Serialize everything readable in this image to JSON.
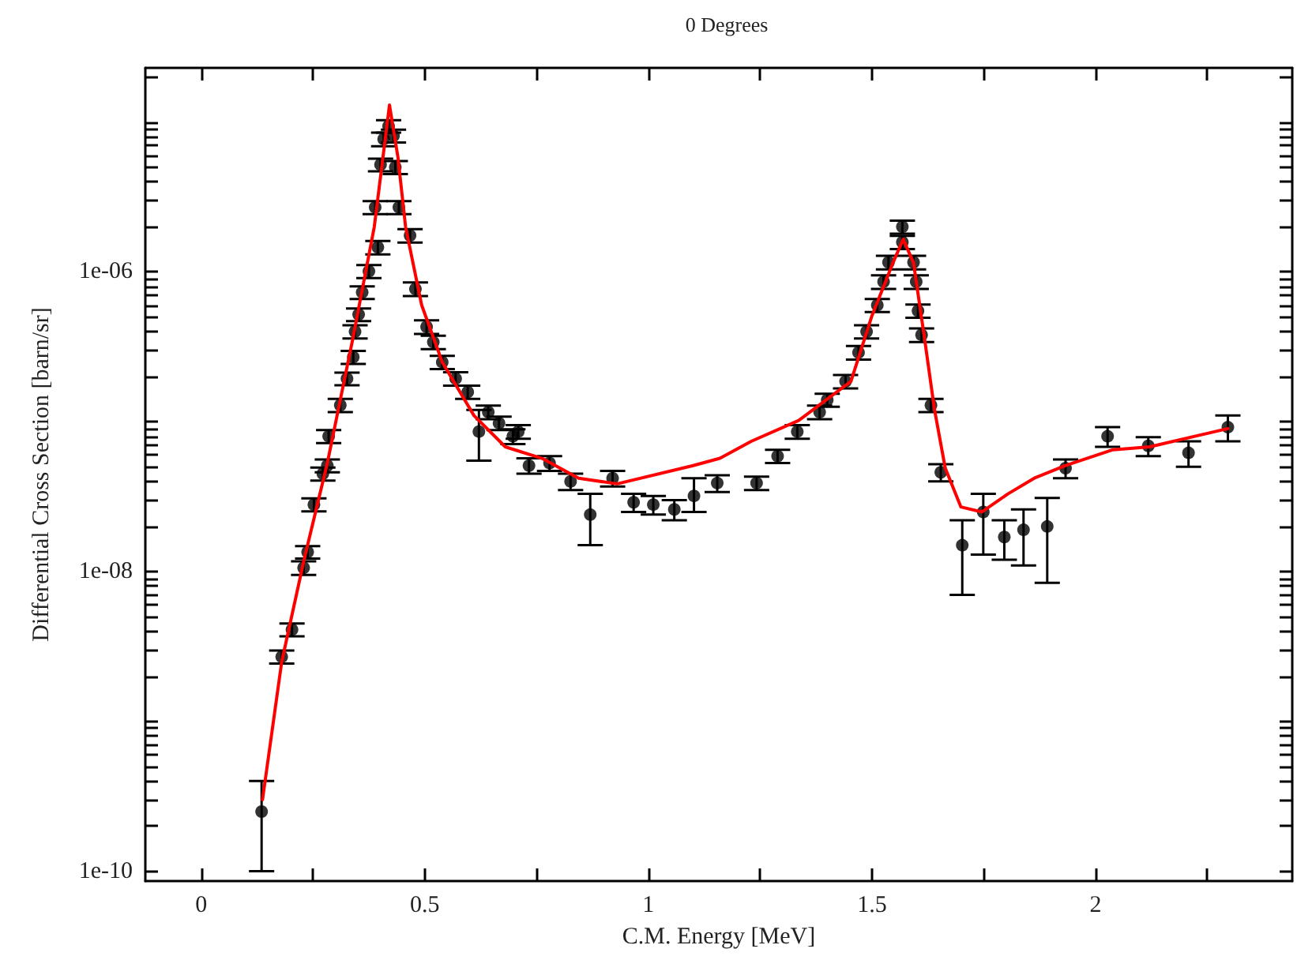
{
  "chart_data": {
    "type": "scatter",
    "subtitle": "0 Degrees",
    "xlabel": "C.M. Energy [MeV]",
    "ylabel": "Differential Cross Section [barn/sr]",
    "log": "y",
    "grid": false,
    "marker": "circle",
    "line_style": "solid",
    "xlim": [
      -0.125,
      2.44
    ],
    "xticks": [
      0,
      {
        "value": 0.25,
        "label": null
      },
      0.5,
      {
        "value": 0.75,
        "label": null
      },
      1,
      {
        "value": 1.25,
        "label": null
      },
      1.5,
      {
        "value": 1.75,
        "label": null
      },
      2,
      {
        "value": 2.25,
        "label": null
      }
    ],
    "ylim": [
      8.6e-11,
      2.3e-05
    ],
    "yticks": [
      {
        "value": 1e-10,
        "label": "1e-10"
      },
      {
        "value": 2e-10,
        "label": null
      },
      {
        "value": 3e-10,
        "label": null
      },
      {
        "value": 4e-10,
        "label": null
      },
      {
        "value": 5e-10,
        "label": null
      },
      {
        "value": 6e-10,
        "label": null
      },
      {
        "value": 7e-10,
        "label": null
      },
      {
        "value": 8e-10,
        "label": null
      },
      {
        "value": 9e-10,
        "label": null
      },
      {
        "value": 1e-09,
        "label": null
      },
      {
        "value": 2e-09,
        "label": null
      },
      {
        "value": 3e-09,
        "label": null
      },
      {
        "value": 4e-09,
        "label": null
      },
      {
        "value": 5e-09,
        "label": null
      },
      {
        "value": 6e-09,
        "label": null
      },
      {
        "value": 7e-09,
        "label": null
      },
      {
        "value": 8e-09,
        "label": null
      },
      {
        "value": 9e-09,
        "label": null
      },
      {
        "value": 1e-08,
        "label": "1e-08"
      },
      {
        "value": 2e-08,
        "label": null
      },
      {
        "value": 3e-08,
        "label": null
      },
      {
        "value": 4e-08,
        "label": null
      },
      {
        "value": 5e-08,
        "label": null
      },
      {
        "value": 6e-08,
        "label": null
      },
      {
        "value": 7e-08,
        "label": null
      },
      {
        "value": 8e-08,
        "label": null
      },
      {
        "value": 9e-08,
        "label": null
      },
      {
        "value": 1e-07,
        "label": null
      },
      {
        "value": 2e-07,
        "label": null
      },
      {
        "value": 3e-07,
        "label": null
      },
      {
        "value": 4e-07,
        "label": null
      },
      {
        "value": 5e-07,
        "label": null
      },
      {
        "value": 6e-07,
        "label": null
      },
      {
        "value": 7e-07,
        "label": null
      },
      {
        "value": 8e-07,
        "label": null
      },
      {
        "value": 9e-07,
        "label": null
      },
      {
        "value": 1e-06,
        "label": "1e-06"
      },
      {
        "value": 2e-06,
        "label": null
      },
      {
        "value": 3e-06,
        "label": null
      },
      {
        "value": 4e-06,
        "label": null
      },
      {
        "value": 5e-06,
        "label": null
      },
      {
        "value": 6e-06,
        "label": null
      },
      {
        "value": 7e-06,
        "label": null
      },
      {
        "value": 8e-06,
        "label": null
      },
      {
        "value": 9e-06,
        "label": null
      },
      {
        "value": 1e-05,
        "label": null
      },
      {
        "value": 2e-05,
        "label": null
      }
    ],
    "series": [
      {
        "color": "#000000",
        "x": [
          0.135,
          0.18,
          0.203,
          0.229,
          0.238,
          0.252,
          0.272,
          0.282,
          0.285,
          0.311,
          0.326,
          0.34,
          0.344,
          0.352,
          0.36,
          0.375,
          0.389,
          0.395,
          0.401,
          0.408,
          0.419,
          0.43,
          0.434,
          0.442,
          0.467,
          0.479,
          0.504,
          0.519,
          0.539,
          0.569,
          0.596,
          0.621,
          0.642,
          0.666,
          0.697,
          0.709,
          0.733,
          0.779,
          0.826,
          0.87,
          0.92,
          0.967,
          1.011,
          1.058,
          1.102,
          1.154,
          1.242,
          1.289,
          1.333,
          1.383,
          1.4,
          1.441,
          1.47,
          1.488,
          1.512,
          1.526,
          1.537,
          1.568,
          1.568,
          1.593,
          1.599,
          1.603,
          1.611,
          1.632,
          1.654,
          1.702,
          1.749,
          1.796,
          1.839,
          1.892,
          1.933,
          2.027,
          2.118,
          2.208,
          2.296
        ],
        "values": [
          2.5e-10,
          2.7e-09,
          4.1e-09,
          1.06e-08,
          1.35e-08,
          2.8e-08,
          4.5e-08,
          5.1e-08,
          8e-08,
          1.29e-07,
          1.94e-07,
          2.7e-07,
          4e-07,
          5.2e-07,
          7.3e-07,
          1.01e-06,
          2.7e-06,
          1.46e-06,
          5.2e-06,
          7.7e-06,
          9.4e-06,
          8.1e-06,
          5e-06,
          2.7e-06,
          1.75e-06,
          7.7e-07,
          4.3e-07,
          3.4e-07,
          2.5e-07,
          1.94e-07,
          1.58e-07,
          8.6e-08,
          1.16e-07,
          9.8e-08,
          8e-08,
          8.6e-08,
          5.1e-08,
          5.3e-08,
          4e-08,
          2.4e-08,
          4.2e-08,
          2.9e-08,
          2.8e-08,
          2.6e-08,
          3.2e-08,
          3.9e-08,
          3.9e-08,
          5.9e-08,
          8.6e-08,
          1.16e-07,
          1.4e-07,
          1.86e-07,
          2.9e-07,
          4e-07,
          6e-07,
          8.6e-07,
          1.16e-06,
          1.58e-06,
          2e-06,
          1.16e-06,
          8.6e-07,
          5.5e-07,
          3.8e-07,
          1.29e-07,
          4.6e-08,
          1.5e-08,
          2.5e-08,
          1.7e-08,
          1.9e-08,
          2e-08,
          4.9e-08,
          8e-08,
          6.9e-08,
          6.2e-08,
          9.2e-08
        ],
        "errors": [
          [
            1e-10,
            4e-10
          ],
          2.7e-10,
          4e-10,
          1.1e-09,
          1.3e-09,
          2.8e-09,
          4.5e-09,
          5e-09,
          8e-09,
          1.3e-08,
          1.9e-08,
          2.7e-08,
          4e-08,
          5e-08,
          7e-08,
          1e-07,
          2.7e-07,
          1.5e-07,
          5e-07,
          8e-07,
          9e-07,
          8e-07,
          5e-07,
          2.7e-07,
          1.8e-07,
          8e-08,
          4.5e-08,
          3.5e-08,
          2.5e-08,
          2e-08,
          1.6e-08,
          [
            5.5e-08,
            1.2e-07
          ],
          1.2e-08,
          1e-08,
          9e-09,
          9e-09,
          6e-09,
          6e-09,
          5e-09,
          [
            1.5e-08,
            3.3e-08
          ],
          5e-09,
          4e-09,
          4e-09,
          4e-09,
          [
            2.5e-08,
            4.2e-08
          ],
          5e-09,
          4e-09,
          6e-09,
          9e-09,
          1.2e-08,
          1.4e-08,
          1.9e-08,
          3e-08,
          4e-08,
          6e-08,
          9e-08,
          1.2e-07,
          1.6e-07,
          2e-07,
          1.2e-07,
          9e-08,
          5.5e-08,
          4e-08,
          1.3e-08,
          6e-09,
          [
            7e-09,
            2.2e-08
          ],
          [
            1.3e-08,
            3.3e-08
          ],
          [
            1.2e-08,
            2.2e-08
          ],
          [
            1.1e-08,
            2.6e-08
          ],
          [
            8.4e-09,
            3.1e-08
          ],
          7e-09,
          1.2e-08,
          1e-08,
          1.2e-08,
          1.8e-08
        ]
      },
      {
        "type": "line",
        "marker": "none",
        "color": "#ff0000",
        "x": [
          0.137,
          0.18,
          0.23,
          0.282,
          0.34,
          0.387,
          0.421,
          0.44,
          0.457,
          0.493,
          0.539,
          0.61,
          0.68,
          0.762,
          0.844,
          0.93,
          1.1,
          1.16,
          1.23,
          1.336,
          1.453,
          1.5,
          1.547,
          1.57,
          1.593,
          1.617,
          1.64,
          1.664,
          1.699,
          1.746,
          1.804,
          1.863,
          1.933,
          2.039,
          2.121,
          2.296
        ],
        "values": [
          3e-10,
          2.5e-09,
          1.2e-08,
          5.3e-08,
          3.7e-07,
          2e-06,
          1.3e-05,
          5.8e-06,
          2e-06,
          6e-07,
          2.5e-07,
          1.1e-07,
          6.8e-08,
          5.7e-08,
          4.2e-08,
          3.85e-08,
          5.1e-08,
          5.7e-08,
          7.4e-08,
          1.02e-07,
          1.86e-07,
          5.1e-07,
          1.15e-06,
          1.65e-06,
          1.15e-06,
          3.7e-07,
          1.2e-07,
          4.9e-08,
          2.7e-08,
          2.5e-08,
          3.3e-08,
          4.2e-08,
          5.1e-08,
          6.5e-08,
          6.8e-08,
          9e-08
        ]
      }
    ]
  }
}
